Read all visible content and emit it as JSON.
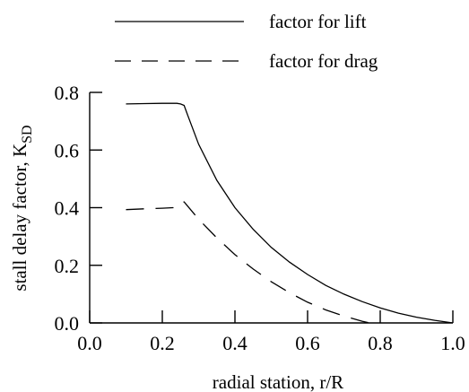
{
  "chart_data": {
    "type": "line",
    "xlabel": "radial station, r/R",
    "ylabel": "stall delay factor, K",
    "ylabel_subscript": "SD",
    "xlim": [
      0.0,
      1.0
    ],
    "ylim": [
      0.0,
      0.8
    ],
    "xticks": [
      "0.0",
      "0.2",
      "0.4",
      "0.6",
      "0.8",
      "1.0"
    ],
    "yticks": [
      "0.0",
      "0.2",
      "0.4",
      "0.6",
      "0.8"
    ],
    "grid": false,
    "legend_position": "top",
    "series": [
      {
        "name": "factor for lift",
        "style": "solid",
        "points": [
          [
            0.1,
            0.76
          ],
          [
            0.15,
            0.761
          ],
          [
            0.2,
            0.762
          ],
          [
            0.24,
            0.762
          ],
          [
            0.25,
            0.76
          ],
          [
            0.26,
            0.755
          ],
          [
            0.27,
            0.72
          ],
          [
            0.3,
            0.62
          ],
          [
            0.35,
            0.495
          ],
          [
            0.4,
            0.4
          ],
          [
            0.45,
            0.325
          ],
          [
            0.5,
            0.262
          ],
          [
            0.55,
            0.211
          ],
          [
            0.6,
            0.168
          ],
          [
            0.65,
            0.13
          ],
          [
            0.7,
            0.1
          ],
          [
            0.75,
            0.074
          ],
          [
            0.8,
            0.052
          ],
          [
            0.85,
            0.034
          ],
          [
            0.9,
            0.02
          ],
          [
            0.95,
            0.009
          ],
          [
            1.0,
            0.0
          ]
        ]
      },
      {
        "name": "factor for drag",
        "style": "dashed",
        "points": [
          [
            0.1,
            0.393
          ],
          [
            0.15,
            0.396
          ],
          [
            0.2,
            0.398
          ],
          [
            0.23,
            0.4
          ],
          [
            0.24,
            0.41
          ],
          [
            0.25,
            0.418
          ],
          [
            0.26,
            0.42
          ],
          [
            0.27,
            0.405
          ],
          [
            0.3,
            0.36
          ],
          [
            0.35,
            0.295
          ],
          [
            0.4,
            0.237
          ],
          [
            0.45,
            0.187
          ],
          [
            0.5,
            0.143
          ],
          [
            0.55,
            0.105
          ],
          [
            0.6,
            0.072
          ],
          [
            0.65,
            0.045
          ],
          [
            0.7,
            0.024
          ],
          [
            0.75,
            0.006
          ],
          [
            0.77,
            0.0
          ]
        ]
      }
    ]
  }
}
